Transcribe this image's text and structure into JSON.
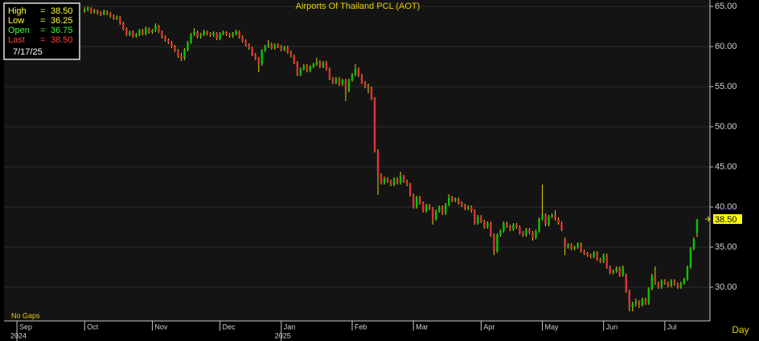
{
  "chart_data": {
    "type": "candlestick",
    "title": "Airports Of Thailand PCL (AOT)",
    "up_color": "#00c800",
    "down_color": "#e0303a",
    "ylim": [
      25.8,
      65.8
    ],
    "yticks": [
      {
        "value": 30,
        "label": "30.00"
      },
      {
        "value": 35,
        "label": "35.00"
      },
      {
        "value": 40,
        "label": "40.00"
      },
      {
        "value": 45,
        "label": "45.00"
      },
      {
        "value": 50,
        "label": "50.00"
      },
      {
        "value": 55,
        "label": "55.00"
      },
      {
        "value": 60,
        "label": "60.00"
      },
      {
        "value": 65,
        "label": "65.00"
      }
    ],
    "xlim": [
      -25,
      194
    ],
    "xticks": [
      {
        "value": -21,
        "label": "Sep"
      },
      {
        "value": 0,
        "label": "Oct"
      },
      {
        "value": 21,
        "label": "Nov"
      },
      {
        "value": 42,
        "label": "Dec"
      },
      {
        "value": 61,
        "label": "Jan"
      },
      {
        "value": 83,
        "label": "Feb"
      },
      {
        "value": 102,
        "label": "Mar"
      },
      {
        "value": 123,
        "label": "Apr"
      },
      {
        "value": 142,
        "label": "May"
      },
      {
        "value": 161,
        "label": "Jun"
      },
      {
        "value": 180,
        "label": "Jul"
      }
    ],
    "year_labels": [
      {
        "value": -21,
        "label": "2024"
      },
      {
        "value": 61,
        "label": "2025"
      }
    ],
    "grid": true,
    "info": {
      "labels": [
        "High",
        "Low",
        "Open",
        "Last"
      ],
      "separator": "=",
      "values": [
        "38.50",
        "36.25",
        "36.75",
        "38.50"
      ],
      "colors": [
        "#ffff40",
        "#ffff40",
        "#40ff40",
        "#ff4040"
      ],
      "date": "7/17/25"
    },
    "last_price_label": "38.50",
    "note": "No Gaps",
    "period": "Day",
    "candles": [
      [
        64.4,
        64.9,
        64.2,
        64.6
      ],
      [
        64.6,
        65.0,
        64.4,
        64.8
      ],
      [
        64.8,
        64.9,
        64.1,
        64.3
      ],
      [
        64.3,
        64.7,
        64.1,
        64.5
      ],
      [
        64.5,
        64.6,
        64.0,
        64.2
      ],
      [
        64.2,
        64.4,
        63.8,
        64.0
      ],
      [
        64.0,
        64.6,
        63.9,
        64.4
      ],
      [
        64.4,
        64.5,
        63.9,
        64.1
      ],
      [
        64.1,
        64.3,
        63.6,
        63.8
      ],
      [
        63.8,
        64.0,
        63.3,
        63.5
      ],
      [
        63.5,
        63.9,
        63.3,
        63.7
      ],
      [
        63.7,
        63.8,
        62.7,
        62.9
      ],
      [
        62.9,
        63.1,
        62.0,
        62.2
      ],
      [
        62.2,
        62.4,
        61.3,
        61.5
      ],
      [
        61.5,
        62.0,
        61.3,
        61.8
      ],
      [
        61.8,
        62.0,
        61.1,
        61.3
      ],
      [
        61.3,
        61.7,
        61.1,
        61.5
      ],
      [
        61.5,
        62.2,
        61.3,
        62.0
      ],
      [
        62.0,
        62.2,
        61.4,
        61.6
      ],
      [
        61.6,
        62.5,
        61.4,
        62.3
      ],
      [
        62.3,
        62.4,
        61.6,
        61.8
      ],
      [
        61.8,
        62.2,
        61.6,
        62.0
      ],
      [
        62.0,
        62.9,
        61.8,
        62.6
      ],
      [
        62.6,
        62.7,
        61.7,
        61.9
      ],
      [
        61.9,
        62.0,
        61.0,
        61.2
      ],
      [
        61.2,
        61.4,
        60.6,
        60.8
      ],
      [
        60.8,
        61.0,
        60.3,
        60.5
      ],
      [
        60.5,
        60.7,
        59.8,
        60.0
      ],
      [
        60.0,
        60.2,
        59.3,
        59.5
      ],
      [
        59.5,
        59.7,
        58.6,
        58.8
      ],
      [
        58.8,
        59.2,
        58.2,
        58.5
      ],
      [
        58.5,
        59.8,
        58.3,
        59.6
      ],
      [
        59.6,
        60.7,
        59.4,
        60.5
      ],
      [
        60.5,
        61.7,
        60.3,
        61.5
      ],
      [
        61.5,
        62.3,
        61.3,
        61.8
      ],
      [
        61.8,
        62.0,
        61.0,
        61.2
      ],
      [
        61.2,
        61.7,
        61.0,
        61.5
      ],
      [
        61.5,
        62.1,
        61.3,
        61.9
      ],
      [
        61.9,
        62.0,
        61.4,
        61.6
      ],
      [
        61.6,
        61.8,
        61.2,
        61.4
      ],
      [
        61.4,
        61.9,
        61.2,
        61.7
      ],
      [
        61.7,
        61.8,
        60.8,
        61.0
      ],
      [
        61.0,
        61.8,
        60.8,
        61.6
      ],
      [
        61.6,
        62.0,
        61.4,
        61.8
      ],
      [
        61.8,
        61.9,
        61.3,
        61.5
      ],
      [
        61.5,
        61.7,
        61.1,
        61.3
      ],
      [
        61.3,
        61.8,
        61.1,
        61.6
      ],
      [
        61.6,
        62.1,
        61.4,
        61.9
      ],
      [
        61.9,
        62.0,
        61.0,
        61.2
      ],
      [
        61.2,
        61.4,
        60.5,
        60.7
      ],
      [
        60.7,
        60.9,
        60.0,
        60.2
      ],
      [
        60.2,
        60.4,
        59.6,
        59.8
      ],
      [
        59.8,
        60.0,
        58.8,
        59.0
      ],
      [
        59.0,
        59.2,
        58.3,
        58.5
      ],
      [
        58.5,
        58.7,
        56.8,
        57.8
      ],
      [
        57.8,
        59.7,
        57.6,
        59.5
      ],
      [
        59.5,
        60.2,
        59.3,
        60.0
      ],
      [
        60.0,
        60.8,
        59.8,
        60.3
      ],
      [
        60.3,
        60.5,
        59.6,
        59.8
      ],
      [
        59.8,
        60.4,
        59.6,
        60.2
      ],
      [
        60.2,
        60.4,
        59.8,
        60.0
      ],
      [
        60.0,
        60.2,
        59.4,
        59.6
      ],
      [
        59.6,
        60.1,
        59.4,
        59.9
      ],
      [
        59.9,
        60.1,
        59.1,
        59.3
      ],
      [
        59.3,
        59.5,
        58.6,
        58.8
      ],
      [
        58.8,
        59.0,
        57.8,
        58.0
      ],
      [
        58.0,
        58.2,
        56.3,
        56.5
      ],
      [
        56.5,
        57.4,
        56.3,
        57.2
      ],
      [
        57.2,
        57.8,
        57.0,
        57.6
      ],
      [
        57.6,
        57.8,
        56.8,
        57.0
      ],
      [
        57.0,
        57.7,
        56.8,
        57.5
      ],
      [
        57.5,
        58.0,
        57.3,
        57.8
      ],
      [
        57.8,
        58.6,
        57.6,
        58.1
      ],
      [
        58.1,
        58.3,
        57.3,
        57.5
      ],
      [
        57.5,
        58.2,
        57.3,
        58.0
      ],
      [
        58.0,
        58.2,
        57.0,
        57.2
      ],
      [
        57.2,
        57.4,
        55.8,
        56.0
      ],
      [
        56.0,
        56.2,
        55.3,
        55.5
      ],
      [
        55.5,
        56.2,
        55.3,
        56.0
      ],
      [
        56.0,
        56.2,
        55.1,
        55.3
      ],
      [
        55.3,
        56.0,
        55.1,
        55.8
      ],
      [
        55.8,
        56.0,
        53.2,
        54.5
      ],
      [
        54.5,
        56.0,
        54.3,
        55.8
      ],
      [
        55.8,
        56.7,
        55.6,
        56.5
      ],
      [
        56.5,
        57.8,
        56.3,
        57.2
      ],
      [
        57.2,
        57.4,
        56.2,
        56.4
      ],
      [
        56.4,
        56.6,
        55.3,
        55.5
      ],
      [
        55.5,
        55.7,
        54.8,
        55.0
      ],
      [
        55.0,
        55.4,
        54.2,
        54.8
      ],
      [
        54.8,
        55.0,
        53.3,
        53.5
      ],
      [
        53.5,
        53.7,
        46.8,
        47.0
      ],
      [
        47.0,
        47.2,
        41.5,
        44.0
      ],
      [
        44.0,
        44.2,
        42.8,
        43.0
      ],
      [
        43.0,
        43.8,
        42.8,
        43.5
      ],
      [
        43.5,
        43.7,
        43.0,
        43.2
      ],
      [
        43.2,
        43.4,
        42.6,
        42.8
      ],
      [
        42.8,
        43.7,
        42.6,
        43.5
      ],
      [
        43.5,
        43.7,
        42.8,
        43.0
      ],
      [
        43.0,
        44.4,
        42.8,
        43.8
      ],
      [
        43.8,
        44.0,
        43.0,
        43.2
      ],
      [
        43.2,
        43.4,
        42.6,
        42.8
      ],
      [
        42.8,
        43.0,
        41.3,
        41.5
      ],
      [
        41.5,
        41.7,
        39.8,
        40.0
      ],
      [
        40.0,
        41.4,
        39.8,
        41.2
      ],
      [
        41.2,
        41.4,
        40.3,
        40.5
      ],
      [
        40.5,
        40.7,
        39.3,
        39.5
      ],
      [
        39.5,
        40.4,
        39.3,
        40.2
      ],
      [
        40.2,
        40.4,
        39.6,
        39.8
      ],
      [
        39.8,
        40.0,
        37.8,
        38.5
      ],
      [
        38.5,
        39.7,
        38.3,
        39.5
      ],
      [
        39.5,
        40.2,
        39.3,
        40.0
      ],
      [
        40.0,
        40.2,
        39.0,
        39.2
      ],
      [
        39.2,
        40.5,
        39.0,
        40.3
      ],
      [
        40.3,
        41.6,
        40.1,
        41.2
      ],
      [
        41.2,
        41.4,
        40.6,
        40.8
      ],
      [
        40.8,
        41.2,
        40.6,
        41.0
      ],
      [
        41.0,
        41.2,
        40.3,
        40.5
      ],
      [
        40.5,
        40.7,
        40.0,
        40.2
      ],
      [
        40.2,
        40.4,
        39.6,
        39.8
      ],
      [
        39.8,
        40.2,
        39.6,
        40.0
      ],
      [
        40.0,
        40.2,
        39.3,
        39.5
      ],
      [
        39.5,
        39.7,
        37.8,
        38.0
      ],
      [
        38.0,
        39.0,
        37.8,
        38.8
      ],
      [
        38.8,
        39.0,
        38.0,
        38.2
      ],
      [
        38.2,
        38.4,
        37.3,
        37.5
      ],
      [
        37.5,
        38.2,
        37.3,
        38.0
      ],
      [
        38.0,
        38.2,
        36.3,
        36.5
      ],
      [
        36.5,
        36.7,
        34.0,
        34.5
      ],
      [
        34.5,
        36.7,
        34.3,
        36.5
      ],
      [
        36.5,
        37.2,
        36.3,
        37.0
      ],
      [
        37.0,
        38.2,
        36.8,
        38.0
      ],
      [
        38.0,
        38.2,
        37.4,
        37.6
      ],
      [
        37.6,
        37.8,
        37.0,
        37.2
      ],
      [
        37.2,
        38.0,
        37.0,
        37.8
      ],
      [
        37.8,
        38.0,
        37.3,
        37.5
      ],
      [
        37.5,
        37.7,
        36.6,
        36.8
      ],
      [
        36.8,
        37.0,
        36.3,
        36.5
      ],
      [
        36.5,
        37.4,
        36.3,
        37.2
      ],
      [
        37.2,
        37.4,
        36.6,
        36.8
      ],
      [
        36.8,
        37.0,
        35.8,
        36.2
      ],
      [
        36.2,
        37.2,
        36.0,
        37.0
      ],
      [
        37.0,
        38.7,
        36.8,
        38.5
      ],
      [
        38.5,
        42.8,
        38.3,
        39.0
      ],
      [
        39.0,
        39.2,
        37.6,
        37.8
      ],
      [
        37.8,
        39.0,
        37.6,
        38.8
      ],
      [
        38.8,
        39.2,
        38.6,
        39.0
      ],
      [
        39.0,
        39.6,
        38.3,
        38.5
      ],
      [
        38.5,
        38.7,
        37.8,
        38.0
      ],
      [
        38.0,
        38.2,
        37.0,
        37.2
      ],
      [
        36.0,
        36.2,
        34.0,
        35.0
      ],
      [
        35.0,
        35.5,
        34.8,
        35.3
      ],
      [
        35.3,
        35.5,
        34.6,
        34.8
      ],
      [
        34.8,
        35.2,
        34.6,
        35.0
      ],
      [
        35.0,
        35.6,
        34.8,
        35.4
      ],
      [
        35.4,
        35.6,
        34.3,
        34.5
      ],
      [
        34.5,
        34.7,
        34.0,
        34.2
      ],
      [
        34.2,
        34.4,
        33.8,
        34.0
      ],
      [
        34.0,
        34.2,
        33.6,
        33.8
      ],
      [
        33.8,
        34.5,
        33.6,
        34.3
      ],
      [
        34.3,
        34.5,
        33.3,
        33.5
      ],
      [
        33.5,
        33.7,
        33.0,
        33.2
      ],
      [
        33.2,
        34.2,
        33.0,
        34.0
      ],
      [
        34.0,
        34.2,
        32.3,
        32.5
      ],
      [
        32.5,
        32.7,
        31.6,
        31.8
      ],
      [
        31.8,
        32.2,
        31.6,
        32.0
      ],
      [
        32.0,
        32.6,
        31.8,
        32.4
      ],
      [
        32.4,
        32.6,
        31.3,
        31.5
      ],
      [
        31.5,
        32.7,
        31.3,
        32.5
      ],
      [
        31.5,
        31.7,
        29.3,
        29.5
      ],
      [
        29.5,
        29.7,
        27.0,
        27.5
      ],
      [
        27.5,
        28.2,
        27.0,
        28.0
      ],
      [
        28.0,
        28.6,
        27.6,
        28.2
      ],
      [
        28.2,
        28.4,
        27.4,
        27.8
      ],
      [
        27.8,
        28.7,
        27.6,
        28.5
      ],
      [
        28.5,
        28.7,
        27.8,
        28.0
      ],
      [
        28.0,
        30.0,
        27.8,
        29.8
      ],
      [
        29.8,
        31.7,
        29.6,
        31.5
      ],
      [
        31.5,
        32.6,
        30.3,
        30.5
      ],
      [
        30.5,
        30.7,
        29.8,
        30.0
      ],
      [
        30.0,
        31.0,
        29.8,
        30.8
      ],
      [
        30.8,
        31.0,
        30.3,
        30.5
      ],
      [
        30.5,
        30.7,
        30.0,
        30.2
      ],
      [
        30.2,
        31.0,
        30.0,
        30.8
      ],
      [
        30.8,
        31.0,
        30.2,
        30.4
      ],
      [
        30.4,
        30.6,
        29.8,
        30.0
      ],
      [
        30.0,
        30.7,
        29.8,
        30.5
      ],
      [
        30.5,
        31.2,
        30.3,
        31.0
      ],
      [
        31.0,
        32.7,
        30.8,
        32.5
      ],
      [
        32.5,
        35.0,
        32.3,
        34.8
      ],
      [
        34.8,
        36.2,
        34.6,
        36.0
      ],
      [
        36.75,
        38.5,
        36.25,
        38.5
      ]
    ]
  }
}
